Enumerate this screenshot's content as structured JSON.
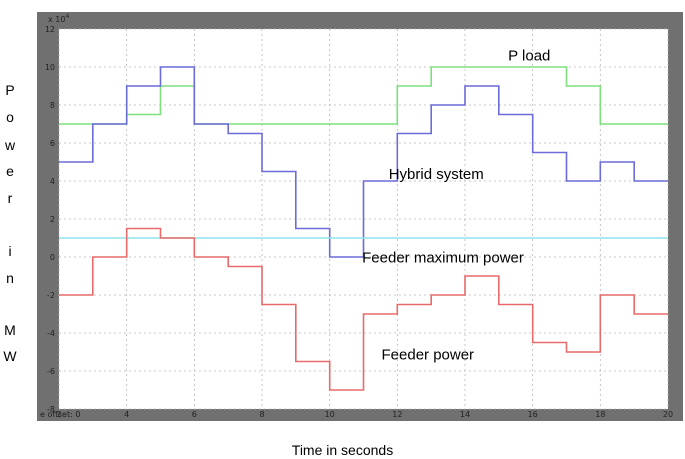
{
  "chart_data": {
    "type": "line",
    "title": "",
    "xlabel": "Time in seconds",
    "ylabel_letters": [
      "P",
      "o",
      "w",
      "e",
      "r",
      "i",
      "n",
      "M",
      "W"
    ],
    "y_exponent_label": "x 10^4",
    "y_exponent_base": "x 10",
    "y_exponent_power": "4",
    "axis_footer_text": "e offset: 0",
    "xlim": [
      2,
      20
    ],
    "ylim": [
      -8,
      12
    ],
    "xticks": [
      2,
      4,
      6,
      8,
      10,
      12,
      14,
      16,
      18,
      20
    ],
    "yticks": [
      -8,
      -6,
      -4,
      -2,
      0,
      2,
      4,
      6,
      8,
      10,
      12
    ],
    "grid": true,
    "background": "#ffffff",
    "frame_color": "#707070",
    "series": [
      {
        "color": "#7de07d",
        "points": [
          [
            2,
            7
          ],
          [
            4,
            7
          ],
          [
            4,
            7.5
          ],
          [
            5,
            7.5
          ],
          [
            5,
            9
          ],
          [
            6,
            9
          ],
          [
            6,
            7
          ],
          [
            12,
            7
          ],
          [
            12,
            9
          ],
          [
            13,
            9
          ],
          [
            13,
            10
          ],
          [
            17,
            10
          ],
          [
            17,
            9
          ],
          [
            18,
            9
          ],
          [
            18,
            7
          ],
          [
            20,
            7
          ]
        ]
      },
      {
        "color": "#6b6bd9",
        "points": [
          [
            2,
            5
          ],
          [
            3,
            5
          ],
          [
            3,
            7
          ],
          [
            4,
            7
          ],
          [
            4,
            9
          ],
          [
            5,
            9
          ],
          [
            5,
            10
          ],
          [
            6,
            10
          ],
          [
            6,
            7
          ],
          [
            7,
            7
          ],
          [
            7,
            6.5
          ],
          [
            8,
            6.5
          ],
          [
            8,
            4.5
          ],
          [
            9,
            4.5
          ],
          [
            9,
            1.5
          ],
          [
            10,
            1.5
          ],
          [
            10,
            0
          ],
          [
            11,
            0
          ],
          [
            11,
            4
          ],
          [
            12,
            4
          ],
          [
            12,
            6.5
          ],
          [
            13,
            6.5
          ],
          [
            13,
            8
          ],
          [
            14,
            8
          ],
          [
            14,
            9
          ],
          [
            15,
            9
          ],
          [
            15,
            7.5
          ],
          [
            16,
            7.5
          ],
          [
            16,
            5.5
          ],
          [
            17,
            5.5
          ],
          [
            17,
            4
          ],
          [
            18,
            4
          ],
          [
            18,
            5
          ],
          [
            19,
            5
          ],
          [
            19,
            4
          ],
          [
            20,
            4
          ]
        ]
      },
      {
        "color": "#8fe3ec",
        "points": [
          [
            2,
            1
          ],
          [
            20,
            1
          ]
        ]
      },
      {
        "color": "#e86a6a",
        "points": [
          [
            2,
            -2
          ],
          [
            3,
            -2
          ],
          [
            3,
            0
          ],
          [
            4,
            0
          ],
          [
            4,
            1.5
          ],
          [
            5,
            1.5
          ],
          [
            5,
            1
          ],
          [
            6,
            1
          ],
          [
            6,
            0
          ],
          [
            7,
            0
          ],
          [
            7,
            -0.5
          ],
          [
            8,
            -0.5
          ],
          [
            8,
            -2.5
          ],
          [
            9,
            -2.5
          ],
          [
            9,
            -5.5
          ],
          [
            10,
            -5.5
          ],
          [
            10,
            -7
          ],
          [
            11,
            -7
          ],
          [
            11,
            -3
          ],
          [
            12,
            -3
          ],
          [
            12,
            -2.5
          ],
          [
            13,
            -2.5
          ],
          [
            13,
            -2
          ],
          [
            14,
            -2
          ],
          [
            14,
            -1
          ],
          [
            15,
            -1
          ],
          [
            15,
            -2.5
          ],
          [
            16,
            -2.5
          ],
          [
            16,
            -4.5
          ],
          [
            17,
            -4.5
          ],
          [
            17,
            -5
          ],
          [
            18,
            -5
          ],
          [
            18,
            -2
          ],
          [
            19,
            -2
          ],
          [
            19,
            -3
          ],
          [
            20,
            -3
          ]
        ]
      }
    ],
    "annotations": [
      {
        "text": "P load",
        "x": 15.9,
        "y": 10.35
      },
      {
        "text": "Hybrid system",
        "x": 13.15,
        "y": 4.1
      },
      {
        "text": "Feeder maximum power",
        "x": 13.35,
        "y": -0.3
      },
      {
        "text": "Feeder power",
        "x": 12.9,
        "y": -5.4
      }
    ]
  }
}
